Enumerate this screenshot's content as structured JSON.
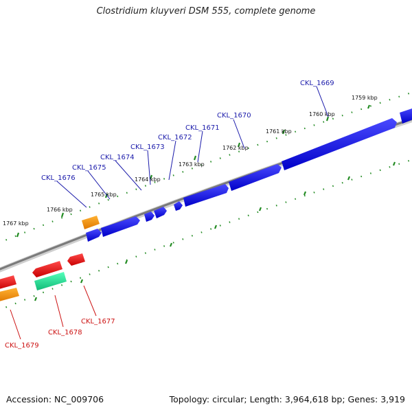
{
  "title": "Clostridium kluyveri DSM 555, complete genome",
  "footer": {
    "accession": "Accession: NC_009706",
    "summary": "Topology: circular; Length: 3,964,618 bp; Genes: 3,919"
  },
  "colors": {
    "forward_gene": "#0000ee",
    "reverse_gene": "#ee0000",
    "orange_gene": "#f39200",
    "teal_gene": "#22dd99",
    "backbone": "#777777",
    "ticks": "#228b22",
    "forward_label": "#1a1aaa",
    "reverse_label": "#cc1111"
  },
  "scale_ticks": [
    {
      "label": "1759 kbp",
      "pos": 1759
    },
    {
      "label": "1760 kbp",
      "pos": 1760
    },
    {
      "label": "1761 kbp",
      "pos": 1761
    },
    {
      "label": "1762 kbp",
      "pos": 1762
    },
    {
      "label": "1763 kbp",
      "pos": 1763
    },
    {
      "label": "1764 kbp",
      "pos": 1764
    },
    {
      "label": "1765 kbp",
      "pos": 1765
    },
    {
      "label": "1766 kbp",
      "pos": 1766
    },
    {
      "label": "1767 kbp",
      "pos": 1767
    }
  ],
  "forward_labels": [
    "CKL_1669",
    "CKL_1670",
    "CKL_1671",
    "CKL_1672",
    "CKL_1673",
    "CKL_1674",
    "CKL_1675",
    "CKL_1676"
  ],
  "reverse_labels": [
    "CKL_1677",
    "CKL_1678",
    "CKL_1679"
  ]
}
